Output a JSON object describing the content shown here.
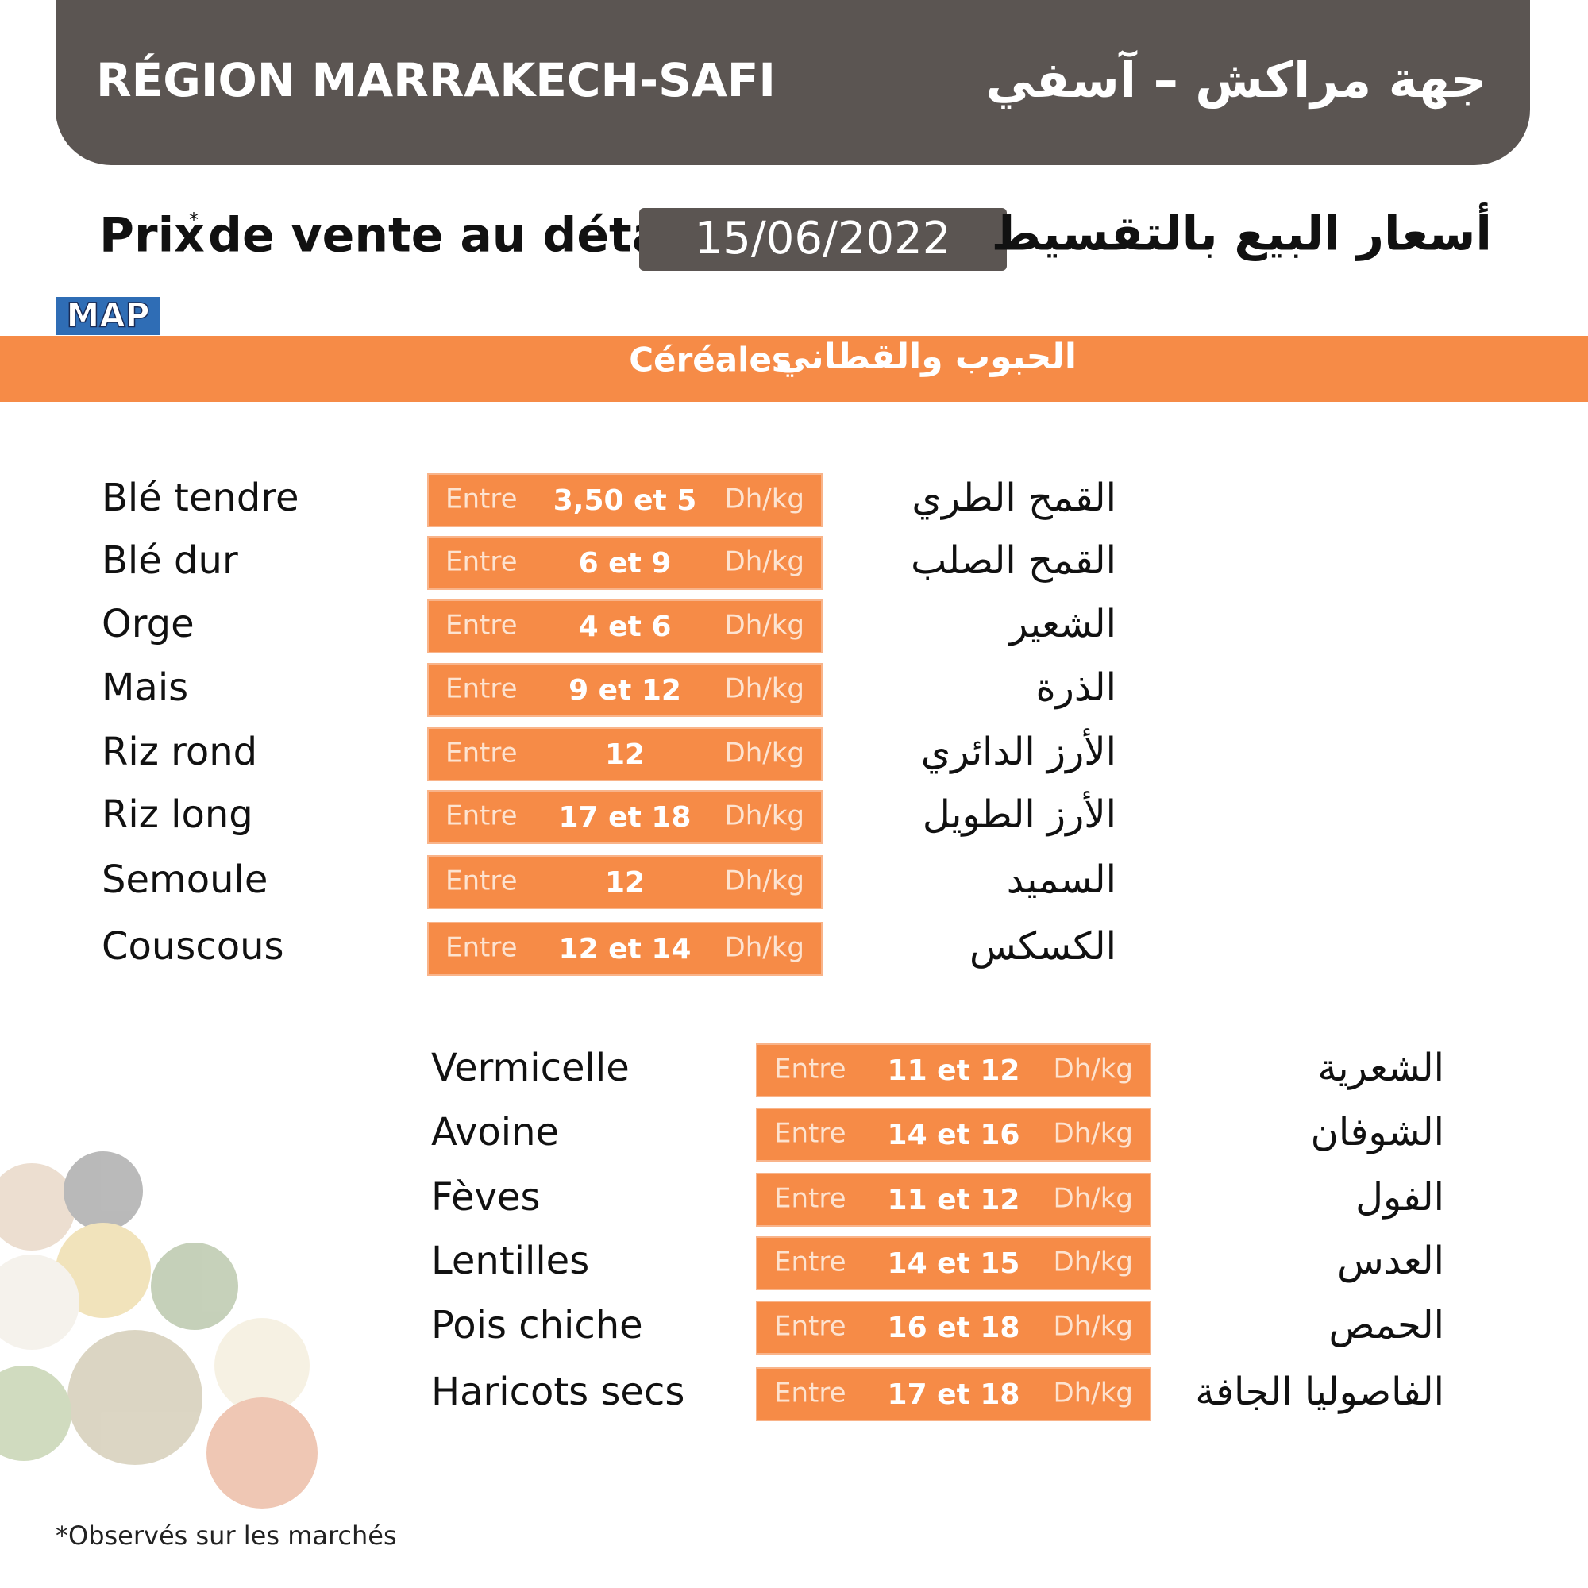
{
  "header": {
    "region_fr": "RÉGION MARRAKECH-SAFI",
    "region_ar": "جهة مراكش – آسفي"
  },
  "subtitle": {
    "fr": "Prix",
    "asterisk": "*",
    "fr_rest": "de vente au détail",
    "date": "15/06/2022",
    "ar": "أسعار البيع بالتقسيط"
  },
  "logo": "MAP",
  "section": {
    "fr": "Céréales",
    "ar": "الحبوب والقطاني"
  },
  "groups": [
    {
      "rows": [
        {
          "fr": "Blé tendre",
          "entre": "Entre",
          "range": "3,50 et 5",
          "unit": "Dh/kg",
          "ar": "القمح الطري"
        },
        {
          "fr": "Blé dur",
          "entre": "Entre",
          "range": "6 et 9",
          "unit": "Dh/kg",
          "ar": "القمح الصلب"
        },
        {
          "fr": "Orge",
          "entre": "Entre",
          "range": "4 et 6",
          "unit": "Dh/kg",
          "ar": "الشعير"
        },
        {
          "fr": "Mais",
          "entre": "Entre",
          "range": "9 et 12",
          "unit": "Dh/kg",
          "ar": "الذرة"
        },
        {
          "fr": "Riz rond",
          "entre": "Entre",
          "range": "12",
          "unit": "Dh/kg",
          "ar": "الأرز الدائري"
        },
        {
          "fr": "Riz long",
          "entre": "Entre",
          "range": "17 et 18",
          "unit": "Dh/kg",
          "ar": "الأرز الطويل"
        },
        {
          "fr": "Semoule",
          "entre": "Entre",
          "range": "12",
          "unit": "Dh/kg",
          "ar": "السميد"
        },
        {
          "fr": "Couscous",
          "entre": "Entre",
          "range": "12 et 14",
          "unit": "Dh/kg",
          "ar": "الكسكس"
        }
      ]
    },
    {
      "rows": [
        {
          "fr": "Vermicelle",
          "entre": "Entre",
          "range": "11 et 12",
          "unit": "Dh/kg",
          "ar": "الشعرية"
        },
        {
          "fr": "Avoine",
          "entre": "Entre",
          "range": "14 et 16",
          "unit": "Dh/kg",
          "ar": "الشوفان"
        },
        {
          "fr": "Fèves",
          "entre": "Entre",
          "range": "11 et 12",
          "unit": "Dh/kg",
          "ar": "الفول"
        },
        {
          "fr": "Lentilles",
          "entre": "Entre",
          "range": "14 et 15",
          "unit": "Dh/kg",
          "ar": "العدس"
        },
        {
          "fr": "Pois chiche",
          "entre": "Entre",
          "range": "16 et 18",
          "unit": "Dh/kg",
          "ar": "الحمص"
        },
        {
          "fr": "Haricots secs",
          "entre": "Entre",
          "range": "17 et 18",
          "unit": "Dh/kg",
          "ar": "الفاصوليا الجافة"
        }
      ]
    }
  ],
  "footnote": "*Observés sur les marchés"
}
